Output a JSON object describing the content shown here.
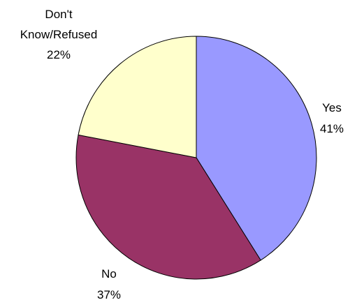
{
  "chart_data": {
    "type": "pie",
    "slices": [
      {
        "label": "Yes",
        "value": 41,
        "value_label": "41%",
        "color": "#9999FF"
      },
      {
        "label": "No",
        "value": 37,
        "value_label": "37%",
        "color": "#993366"
      },
      {
        "label": "Don't Know/Refused",
        "label_lines": [
          "Don't",
          "Know/Refused"
        ],
        "value": 22,
        "value_label": "22%",
        "color": "#FFFFCC"
      }
    ],
    "start": "12 o'clock",
    "direction": "clockwise",
    "edge_color": "#000000"
  }
}
